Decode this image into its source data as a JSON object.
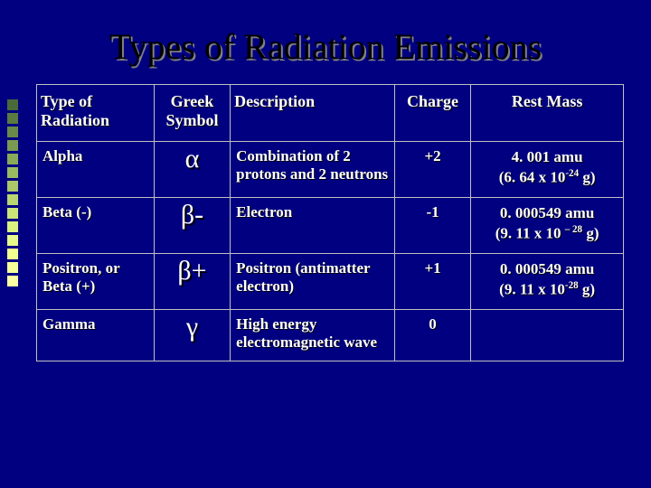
{
  "title": "Types of Radiation Emissions",
  "decoration": {
    "colors": [
      "#4a6a3a",
      "#5a7a42",
      "#6a8a4a",
      "#7a9a52",
      "#8aaa5a",
      "#9aba62",
      "#aac86a",
      "#bad672",
      "#cae47a",
      "#daf282",
      "#e8fa8a",
      "#f0ff92",
      "#f6ff9a",
      "#fcffa2"
    ]
  },
  "table": {
    "headers": {
      "type": "Type of Radiation",
      "symbol": "Greek Symbol",
      "desc": "Description",
      "charge": "Charge",
      "mass": "Rest Mass"
    },
    "rows": [
      {
        "type": "Alpha",
        "symbol": "α",
        "desc": "Combination of 2 protons and 2 neutrons",
        "charge": "+2",
        "mass_line1": "4. 001 amu",
        "mass_line2_a": "(6. 64 x 10",
        "mass_line2_exp": "-24",
        "mass_line2_b": " g)"
      },
      {
        "type": "Beta (-)",
        "symbol": "β-",
        "desc": "Electron",
        "charge": "-1",
        "mass_line1": "0. 000549 amu",
        "mass_line2_a": "(9. 11 x 10 ",
        "mass_line2_exp": "– 28",
        "mass_line2_b": " g)"
      },
      {
        "type": "Positron, or Beta (+)",
        "symbol": "β+",
        "desc": "Positron (antimatter electron)",
        "charge": "+1",
        "mass_line1": "0. 000549 amu",
        "mass_line2_a": "(9. 11 x 10",
        "mass_line2_exp": "-28",
        "mass_line2_b": " g)"
      },
      {
        "type": "Gamma",
        "symbol": "γ",
        "desc": "High energy electromagnetic wave",
        "charge": "0",
        "mass_line1": "",
        "mass_line2_a": "",
        "mass_line2_exp": "",
        "mass_line2_b": ""
      }
    ]
  }
}
